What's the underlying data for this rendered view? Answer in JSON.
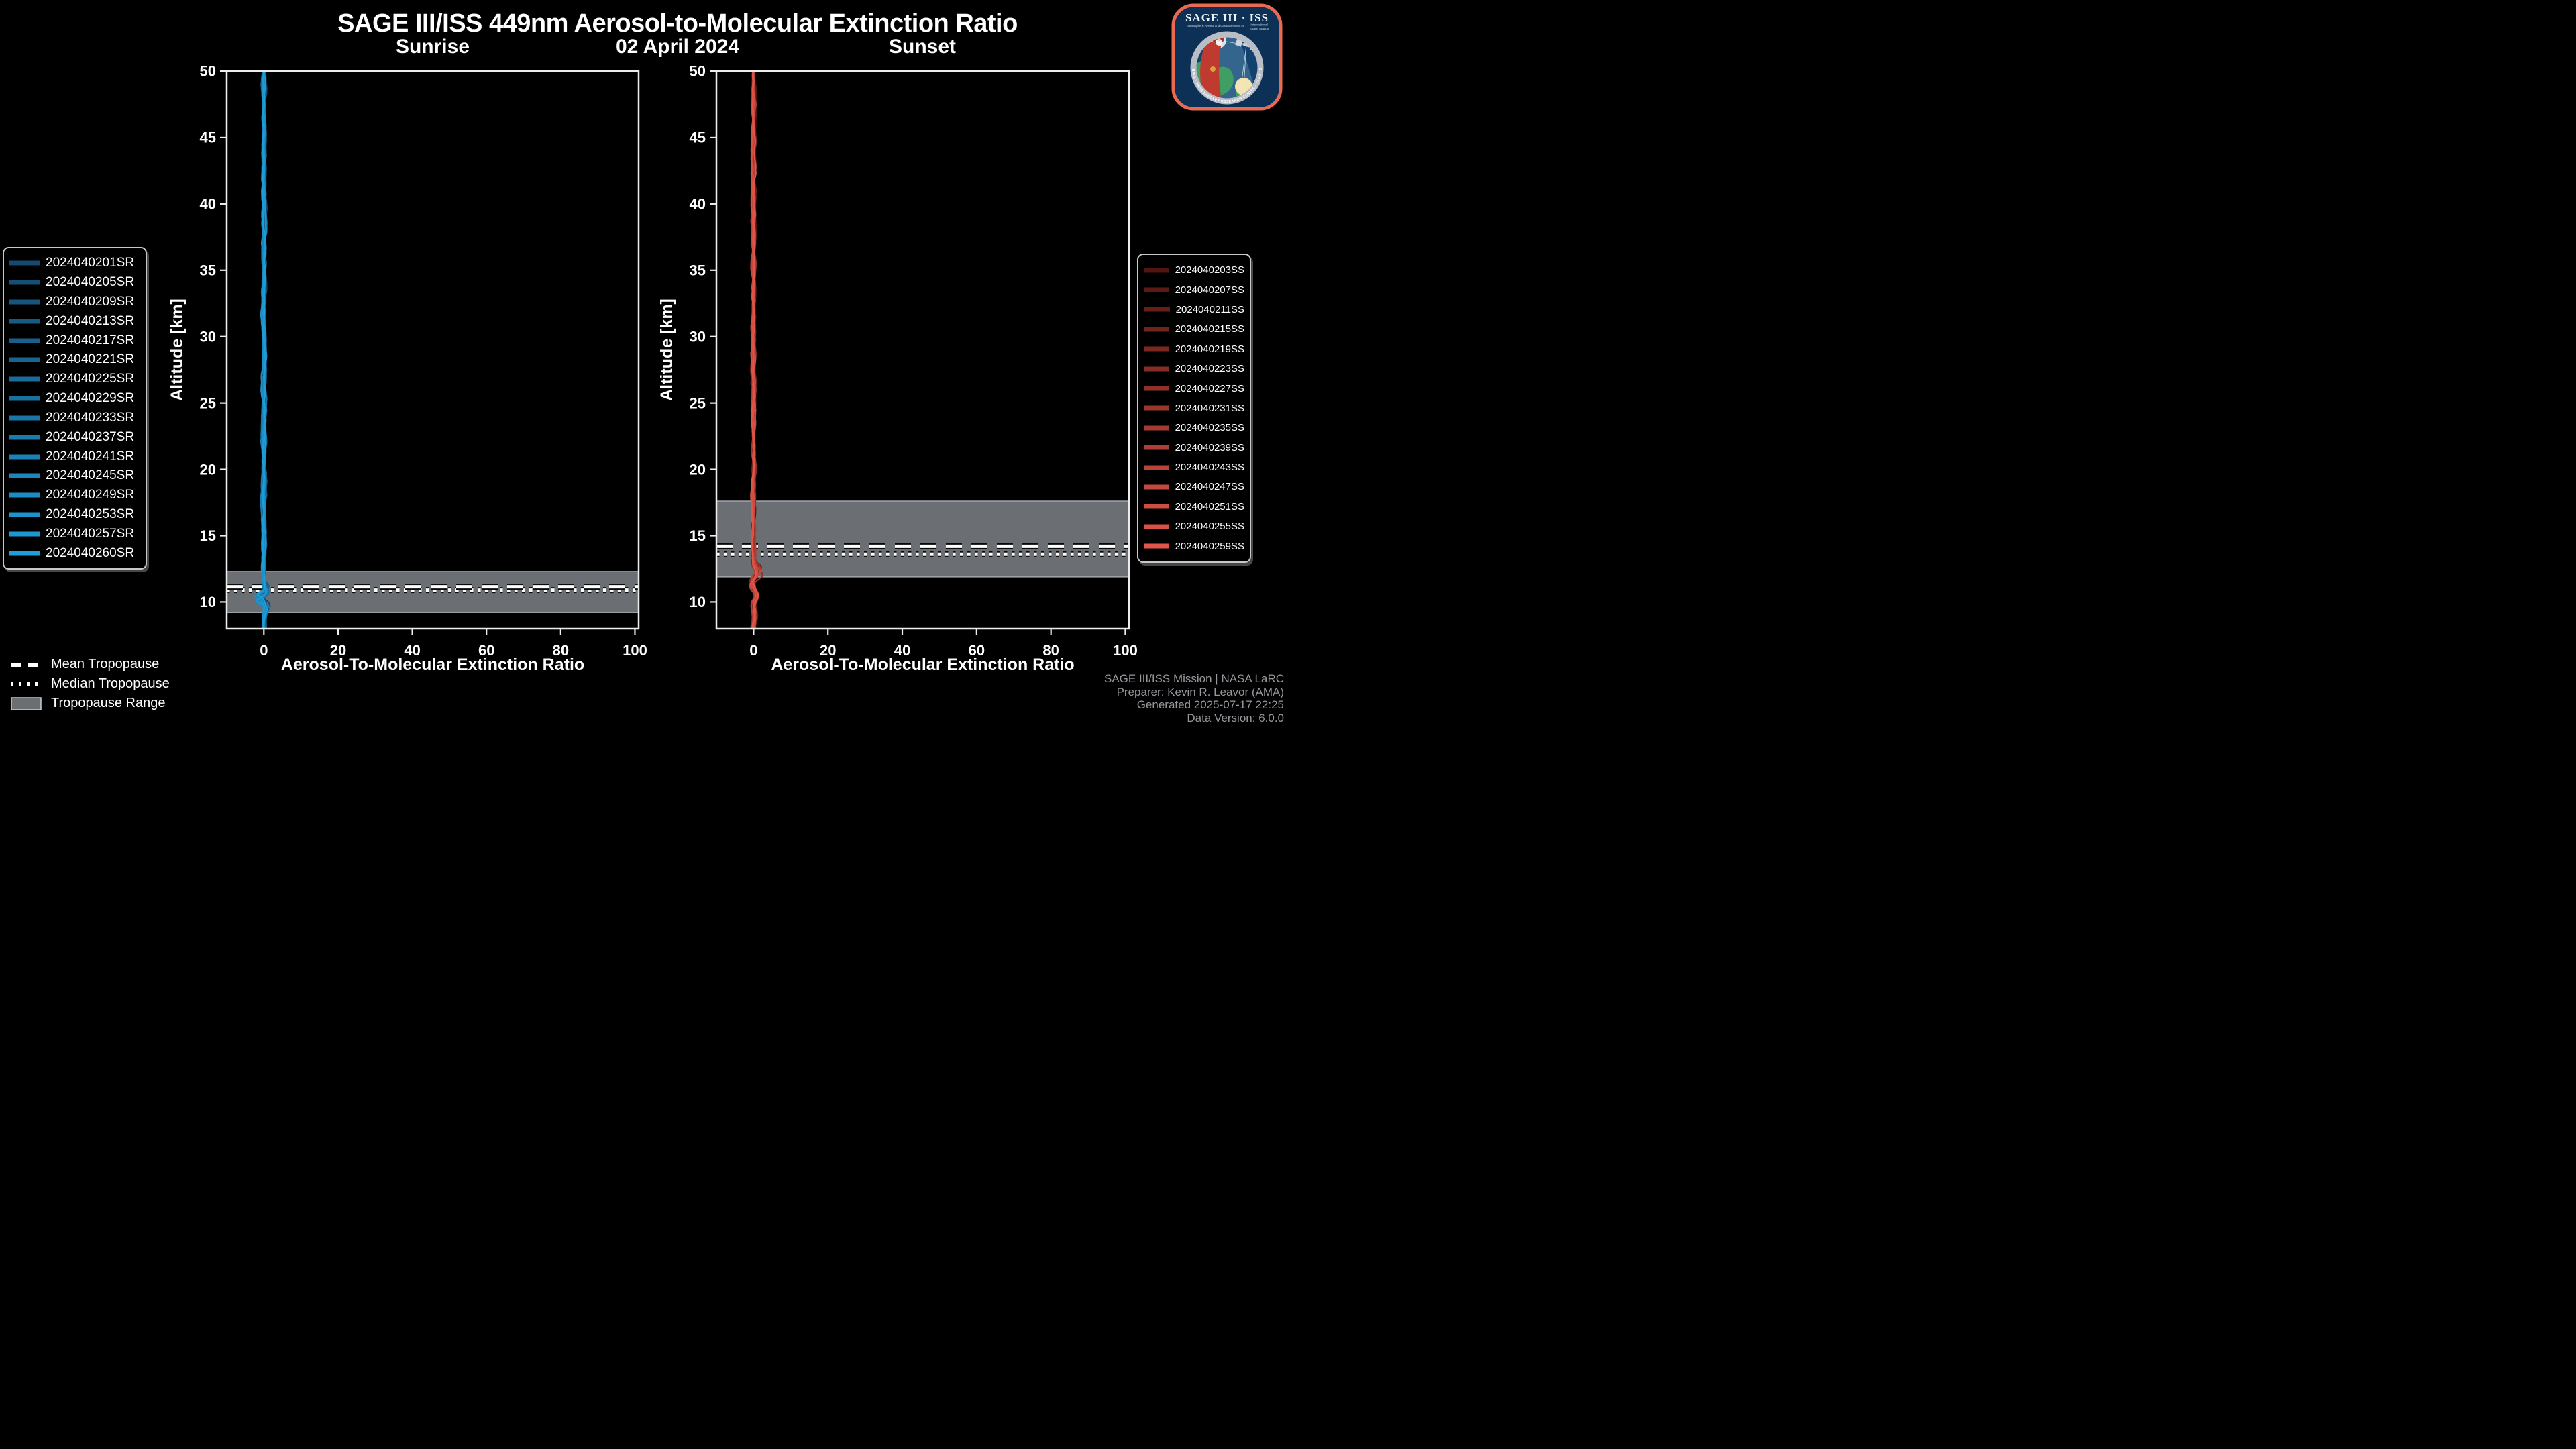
{
  "header": {
    "title": "SAGE III/ISS 449nm Aerosol-to-Molecular Extinction Ratio",
    "sunrise": "Sunrise",
    "date": "02 April 2024",
    "sunset": "Sunset"
  },
  "logo": {
    "title": "SAGE III · ISS",
    "tagline_left": "Stratospheric Aerosol and Gas Experiment III",
    "tagline_right_1": "International",
    "tagline_right_2": "Space Station",
    "ring_text": "BALL · NASA LANGLEY RESEARCH CENTER · TAS-I · ESA",
    "border_color": "#e76a52",
    "background_color": "#0d3056"
  },
  "tropopause_legend": {
    "items": [
      {
        "label": "Mean Tropopause",
        "style": "dashed-white-line"
      },
      {
        "label": "Median Tropopause",
        "style": "dotted-white-line"
      },
      {
        "label": "Tropopause Range",
        "style": "gray-band"
      }
    ]
  },
  "footer": {
    "lines": [
      "SAGE III/ISS Mission | NASA LaRC",
      "Preparer: Kevin R. Leavor (AMA)",
      "Generated 2025-07-17 22:25",
      "Data Version: 6.0.0"
    ]
  },
  "chart_data": [
    {
      "type": "line",
      "panel": "Sunrise",
      "xlabel": "Aerosol-To-Molecular Extinction Ratio",
      "ylabel": "Altitude [km]",
      "xlim": [
        -10,
        101
      ],
      "ylim": [
        8,
        50
      ],
      "xticks": [
        0,
        20,
        40,
        60,
        80,
        100
      ],
      "yticks": [
        10,
        15,
        20,
        25,
        30,
        35,
        40,
        45,
        50
      ],
      "grid": false,
      "legend_position": "outside-left",
      "band_color": "#6b6f74",
      "band_edge_color": "#9ba0a5",
      "tropopause": {
        "mean_km": 11.15,
        "median_km": 10.9,
        "range_km": [
          9.2,
          12.3
        ]
      },
      "profile": {
        "center_ratio": 0,
        "wiggle_ratio": 0.5,
        "alt_top_km": 50,
        "alt_bottom_km": 8,
        "features": [
          {
            "alt_km": 10.9,
            "ratio": 1.2,
            "width_km": 0.25
          },
          {
            "alt_km": 10.35,
            "ratio": -1.8,
            "width_km": 0.2
          },
          {
            "alt_km": 9.6,
            "ratio": 0.8,
            "width_km": 0.3
          }
        ]
      },
      "series": [
        {
          "name": "2024040201SR",
          "color": "#15496e"
        },
        {
          "name": "2024040205SR",
          "color": "#164f75"
        },
        {
          "name": "2024040209SR",
          "color": "#16547c"
        },
        {
          "name": "2024040213SR",
          "color": "#175a83"
        },
        {
          "name": "2024040217SR",
          "color": "#17608b"
        },
        {
          "name": "2024040221SR",
          "color": "#186592"
        },
        {
          "name": "2024040225SR",
          "color": "#196b99"
        },
        {
          "name": "2024040229SR",
          "color": "#1971a0"
        },
        {
          "name": "2024040233SR",
          "color": "#1a76a7"
        },
        {
          "name": "2024040237SR",
          "color": "#1a7cae"
        },
        {
          "name": "2024040241SR",
          "color": "#1b82b5"
        },
        {
          "name": "2024040245SR",
          "color": "#1c87bc"
        },
        {
          "name": "2024040249SR",
          "color": "#1c8dc4"
        },
        {
          "name": "2024040253SR",
          "color": "#1d93cb"
        },
        {
          "name": "2024040257SR",
          "color": "#1d98d2"
        },
        {
          "name": "2024040260SR",
          "color": "#1e9ed9"
        }
      ]
    },
    {
      "type": "line",
      "panel": "Sunset",
      "xlabel": "Aerosol-To-Molecular Extinction Ratio",
      "ylabel": "Altitude [km]",
      "xlim": [
        -10,
        101
      ],
      "ylim": [
        8,
        50
      ],
      "xticks": [
        0,
        20,
        40,
        60,
        80,
        100
      ],
      "yticks": [
        10,
        15,
        20,
        25,
        30,
        35,
        40,
        45,
        50
      ],
      "grid": false,
      "legend_position": "outside-right",
      "band_color": "#6b6f74",
      "band_edge_color": "#9ba0a5",
      "tropopause": {
        "mean_km": 14.2,
        "median_km": 13.6,
        "range_km": [
          11.9,
          17.6
        ]
      },
      "profile": {
        "center_ratio": 0,
        "wiggle_ratio": 0.5,
        "alt_top_km": 50,
        "alt_bottom_km": 8,
        "features": [
          {
            "alt_km": 12.3,
            "ratio": 1.8,
            "width_km": 0.3
          },
          {
            "alt_km": 11.4,
            "ratio": -0.8,
            "width_km": 0.25
          },
          {
            "alt_km": 10.4,
            "ratio": 1.0,
            "width_km": 0.35
          },
          {
            "alt_km": 9.0,
            "ratio": 0.6,
            "width_km": 0.4
          }
        ]
      },
      "series": [
        {
          "name": "2024040203SS",
          "color": "#521511"
        },
        {
          "name": "2024040207SS",
          "color": "#5c1a15"
        },
        {
          "name": "2024040211SS",
          "color": "#671e19"
        },
        {
          "name": "2024040215SS",
          "color": "#71231d"
        },
        {
          "name": "2024040219SS",
          "color": "#7b2821"
        },
        {
          "name": "2024040223SS",
          "color": "#852c25"
        },
        {
          "name": "2024040227SS",
          "color": "#903129"
        },
        {
          "name": "2024040231SS",
          "color": "#9a362d"
        },
        {
          "name": "2024040235SS",
          "color": "#a43a31"
        },
        {
          "name": "2024040239SS",
          "color": "#af3f35"
        },
        {
          "name": "2024040243SS",
          "color": "#b94339"
        },
        {
          "name": "2024040247SS",
          "color": "#c3483d"
        },
        {
          "name": "2024040251SS",
          "color": "#cd4d41"
        },
        {
          "name": "2024040255SS",
          "color": "#d85145"
        },
        {
          "name": "2024040259SS",
          "color": "#e25649"
        }
      ]
    }
  ]
}
